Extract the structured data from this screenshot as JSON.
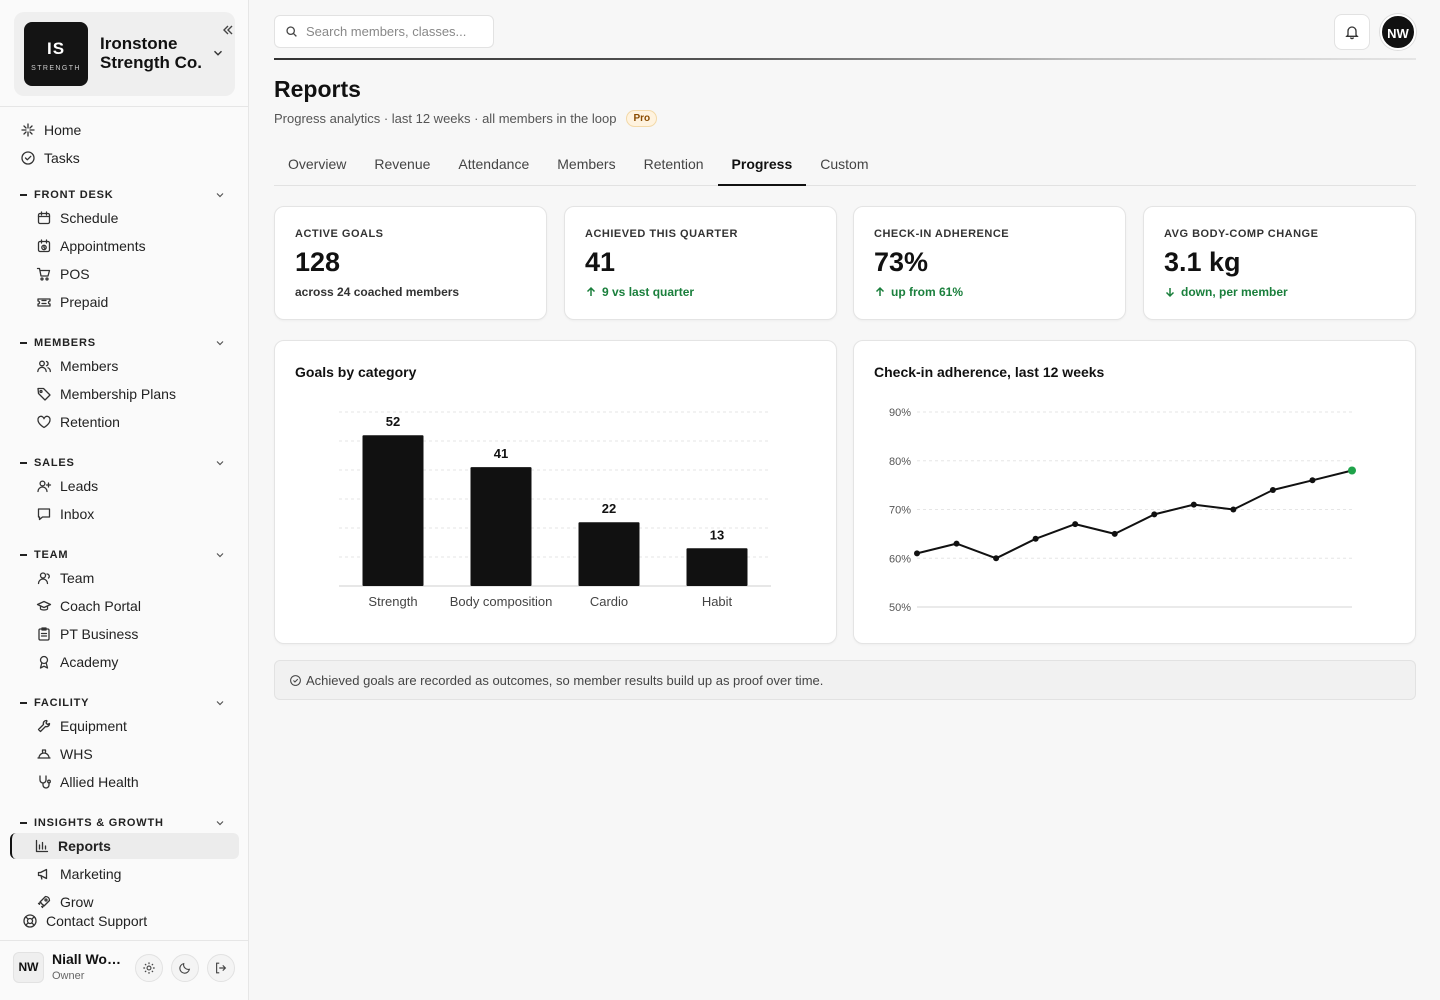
{
  "brand": {
    "initials": "IS",
    "tagline": "STRENGTH",
    "name": "Ironstone Strength Co."
  },
  "nav_top": [
    {
      "label": "Home",
      "icon": "sparkle-icon"
    },
    {
      "label": "Tasks",
      "icon": "check-circle-icon"
    }
  ],
  "groups": [
    {
      "title": "FRONT DESK",
      "items": [
        {
          "label": "Schedule",
          "icon": "calendar-icon"
        },
        {
          "label": "Appointments",
          "icon": "calendar-clock-icon"
        },
        {
          "label": "POS",
          "icon": "cart-icon"
        },
        {
          "label": "Prepaid",
          "icon": "ticket-icon"
        }
      ]
    },
    {
      "title": "MEMBERS",
      "items": [
        {
          "label": "Members",
          "icon": "users-icon"
        },
        {
          "label": "Membership Plans",
          "icon": "tag-icon"
        },
        {
          "label": "Retention",
          "icon": "heart-icon"
        }
      ]
    },
    {
      "title": "SALES",
      "items": [
        {
          "label": "Leads",
          "icon": "user-plus-icon"
        },
        {
          "label": "Inbox",
          "icon": "message-icon"
        }
      ]
    },
    {
      "title": "TEAM",
      "items": [
        {
          "label": "Team",
          "icon": "team-icon"
        },
        {
          "label": "Coach Portal",
          "icon": "graduation-cap-icon"
        },
        {
          "label": "PT Business",
          "icon": "clipboard-icon"
        },
        {
          "label": "Academy",
          "icon": "award-icon"
        }
      ]
    },
    {
      "title": "FACILITY",
      "items": [
        {
          "label": "Equipment",
          "icon": "wrench-icon"
        },
        {
          "label": "WHS",
          "icon": "hard-hat-icon"
        },
        {
          "label": "Allied Health",
          "icon": "stethoscope-icon"
        }
      ]
    },
    {
      "title": "INSIGHTS & GROWTH",
      "items": [
        {
          "label": "Reports",
          "icon": "bar-chart-icon",
          "active": true
        },
        {
          "label": "Marketing",
          "icon": "megaphone-icon"
        },
        {
          "label": "Grow",
          "icon": "rocket-icon"
        }
      ]
    }
  ],
  "support": {
    "label": "Contact Support",
    "icon": "lifebuoy-icon"
  },
  "user": {
    "initials": "NW",
    "name": "Niall Wog...",
    "role": "Owner"
  },
  "search": {
    "placeholder": "Search members, classes..."
  },
  "top_avatar": "NW",
  "page": {
    "title": "Reports",
    "subtitle": "Progress analytics · last 12 weeks · all members in the loop",
    "badge": "Pro"
  },
  "tabs": [
    {
      "label": "Overview"
    },
    {
      "label": "Revenue"
    },
    {
      "label": "Attendance"
    },
    {
      "label": "Members"
    },
    {
      "label": "Retention"
    },
    {
      "label": "Progress",
      "active": true
    },
    {
      "label": "Custom"
    }
  ],
  "stats": [
    {
      "label": "ACTIVE GOALS",
      "value": "128",
      "note": "across 24 coached members",
      "trend": "none"
    },
    {
      "label": "ACHIEVED THIS QUARTER",
      "value": "41",
      "note": "9 vs last quarter",
      "trend": "up"
    },
    {
      "label": "CHECK-IN ADHERENCE",
      "value": "73%",
      "note": "up from 61%",
      "trend": "up"
    },
    {
      "label": "AVG BODY-COMP CHANGE",
      "value": "3.1 kg",
      "note": "down, per member",
      "trend": "down"
    }
  ],
  "chart_data": [
    {
      "type": "bar",
      "title": "Goals by category",
      "categories": [
        "Strength",
        "Body composition",
        "Cardio",
        "Habit"
      ],
      "values": [
        52,
        41,
        22,
        13
      ],
      "ylim": [
        0,
        60
      ],
      "grid": true,
      "color": "#111111"
    },
    {
      "type": "line",
      "title": "Check-in adherence, last 12 weeks",
      "x": [
        1,
        2,
        3,
        4,
        5,
        6,
        7,
        8,
        9,
        10,
        11,
        12
      ],
      "values": [
        61,
        63,
        60,
        64,
        67,
        65,
        69,
        71,
        70,
        74,
        76,
        78
      ],
      "yticks": [
        "50%",
        "60%",
        "70%",
        "80%",
        "90%"
      ],
      "ylim": [
        50,
        90
      ],
      "grid": true,
      "color": "#111111",
      "highlight_color": "#1fa34a"
    }
  ],
  "footnote": "Achieved goals are recorded as outcomes, so member results build up as proof over time."
}
